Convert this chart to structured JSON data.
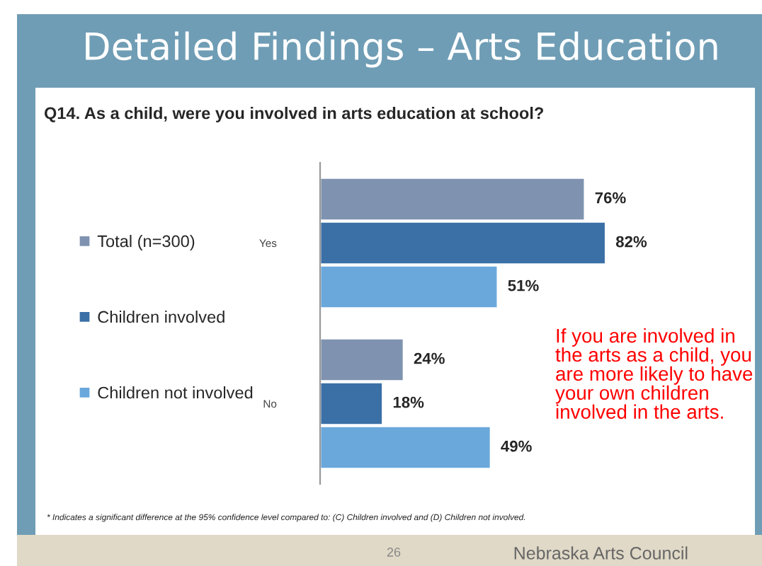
{
  "chart_data": {
    "type": "bar",
    "orientation": "horizontal",
    "title": "Detailed Findings – Arts Education",
    "subtitle": "Q14. As a child, were you involved in arts education at school?",
    "categories": [
      "Yes",
      "No"
    ],
    "series": [
      {
        "name": "Total (n=300)",
        "color": "#7f93b0",
        "values": [
          76,
          24
        ],
        "value_labels": [
          "76%",
          "24%"
        ]
      },
      {
        "name": "Children involved",
        "color": "#3b70a6",
        "values": [
          82,
          18
        ],
        "value_labels": [
          "82%",
          "18%"
        ]
      },
      {
        "name": "Children not involved",
        "color": "#6aa8dc",
        "values": [
          51,
          49
        ],
        "value_labels": [
          "51%",
          "49%"
        ]
      }
    ],
    "legend": "left",
    "grid": false,
    "annotations": [
      "If you are involved in the arts as a child, you are more likely to have your own children involved in the arts.",
      "* Indicates a significant difference at the 95% confidence level compared to: (C) Children involved and (D) Children not involved.",
      "26",
      "Nebraska Arts Council"
    ]
  }
}
